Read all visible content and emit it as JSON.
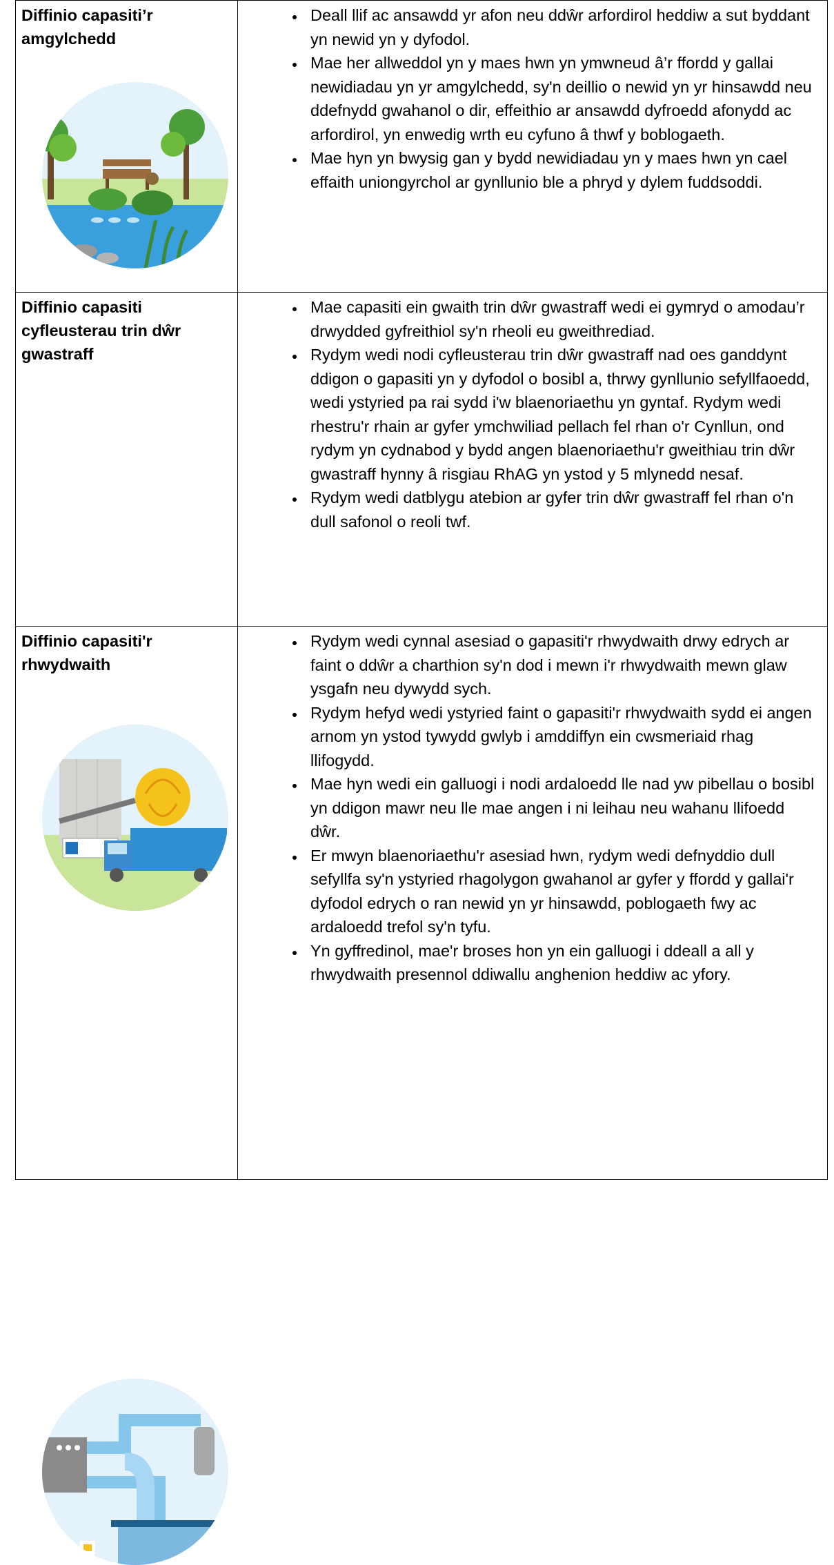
{
  "table": {
    "rows": [
      {
        "heading": "Diffinio capasiti’r amgylchedd",
        "bullets": [
          "Deall llif ac ansawdd yr afon neu ddŵr arfordirol heddiw a sut byddant yn newid yn y dyfodol.",
          "Mae her allweddol yn y maes hwn yn ymwneud â’r ffordd y gallai newidiadau yn yr amgylchedd, sy'n deillio o newid yn yr hinsawdd neu ddefnydd gwahanol o dir, effeithio ar ansawdd dyfroedd afonydd ac arfordirol, yn enwedig wrth eu cyfuno â thwf y boblogaeth.",
          "Mae hyn yn bwysig gan y bydd newidiadau yn y maes hwn yn cael effaith uniongyrchol ar gynllunio ble a phryd y dylem fuddsoddi."
        ]
      },
      {
        "heading": "Diffinio capasiti cyfleusterau trin dŵr gwastraff",
        "bullets": [
          "Mae capasiti ein gwaith trin dŵr gwastraff wedi ei gymryd o amodau’r drwydded gyfreithiol sy'n rheoli eu gweithrediad.",
          "Rydym wedi nodi cyfleusterau trin dŵr gwastraff nad oes ganddynt ddigon o gapasiti yn y dyfodol o bosibl a, thrwy gynllunio sefyllfaoedd, wedi ystyried pa rai sydd i'w blaenoriaethu yn gyntaf. Rydym wedi rhestru'r rhain ar gyfer ymchwiliad pellach fel rhan o'r Cynllun, ond rydym yn cydnabod y bydd angen blaenoriaethu'r gweithiau trin dŵr gwastraff hynny â risgiau RhAG yn ystod y 5 mlynedd nesaf.",
          "Rydym wedi datblygu atebion ar gyfer trin dŵr gwastraff fel rhan o'n dull safonol o reoli twf."
        ]
      },
      {
        "heading": "Diffinio capasiti'r rhwydwaith",
        "bullets": [
          "Rydym wedi cynnal asesiad o gapasiti'r rhwydwaith drwy edrych ar faint o ddŵr a charthion sy'n dod i mewn i'r rhwydwaith mewn glaw ysgafn neu dywydd sych.",
          "Rydym hefyd wedi ystyried faint o gapasiti'r rhwydwaith sydd ei angen arnom yn ystod tywydd gwlyb i amddiffyn ein cwsmeriaid rhag llifogydd.",
          "Mae hyn wedi ein galluogi i nodi ardaloedd lle nad yw pibellau o bosibl yn ddigon mawr neu lle mae angen i ni leihau neu wahanu llifoedd dŵr.",
          "Er mwyn blaenoriaethu'r asesiad hwn, rydym wedi defnyddio dull sefyllfa sy'n ystyried rhagolygon gwahanol ar gyfer y ffordd y gallai'r dyfodol edrych o ran newid yn yr hinsawdd, poblogaeth fwy ac ardaloedd trefol sy'n tyfu.",
          "Yn gyffredinol, mae'r broses hon yn ein galluogi i ddeall a all y rhwydwaith presennol ddiwallu anghenion heddiw ac yfory."
        ]
      }
    ]
  }
}
